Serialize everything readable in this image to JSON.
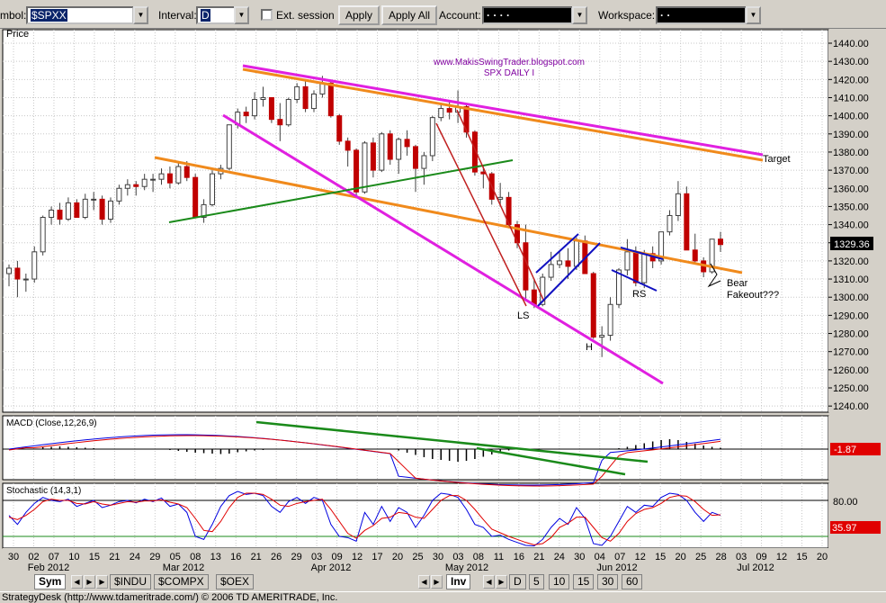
{
  "toolbar": {
    "symbol_label": "mbol:",
    "symbol_value": "$SPXX",
    "interval_label": "Interval:",
    "interval_value": "D",
    "ext_session_label": "Ext. session",
    "apply_label": "Apply",
    "apply_all_label": "Apply All",
    "account_label": "Account:",
    "account_value": "·    ·    ·    ·",
    "workspace_label": "Workspace:",
    "workspace_value": "·    ·"
  },
  "price_panel": {
    "label": "Price",
    "watermark_line1": "www.MakisSwingTrader.blogspot.com",
    "watermark_line2": "SPX DAILY I",
    "last_price": "1329.36",
    "annotations": {
      "target": "Target",
      "bear": "Bear",
      "fakeout": "Fakeout???",
      "ls": "LS",
      "h": "H",
      "rs": "RS"
    },
    "line_colors": {
      "magenta": "#e020e0",
      "orange": "#f08a1c",
      "green": "#1a8a1a",
      "red": "#c02020",
      "blue": "#1010c0"
    }
  },
  "macd_panel": {
    "label": "MACD (Close,12,26,9)",
    "last_value": "-1.87"
  },
  "stoch_panel": {
    "label": "Stochastic (14,3,1)",
    "level_80": "80.00",
    "last_value": "35.97"
  },
  "chart_data": {
    "type": "candlestick",
    "ylim": [
      1240,
      1445
    ],
    "y_ticks": [
      1440,
      1430,
      1420,
      1410,
      1400,
      1390,
      1380,
      1370,
      1360,
      1350,
      1340,
      1330,
      1320,
      1310,
      1300,
      1290,
      1280,
      1270,
      1260,
      1250,
      1240
    ],
    "date_ticks": [
      "30",
      "02",
      "07",
      "10",
      "15",
      "21",
      "24",
      "29",
      "05",
      "08",
      "13",
      "16",
      "21",
      "26",
      "29",
      "03",
      "09",
      "12",
      "17",
      "20",
      "25",
      "30",
      "03",
      "08",
      "11",
      "16",
      "21",
      "24",
      "30",
      "04",
      "07",
      "12",
      "15",
      "20",
      "25",
      "28",
      "03",
      "09",
      "12",
      "15",
      "20"
    ],
    "month_labels": [
      "Feb 2012",
      "Mar 2012",
      "Apr 2012",
      "May 2012",
      "Jun 2012",
      "Jul 2012"
    ],
    "ohlc": [
      [
        1313,
        1318,
        1306,
        1316
      ],
      [
        1316,
        1320,
        1300,
        1310
      ],
      [
        1310,
        1313,
        1303,
        1310
      ],
      [
        1310,
        1328,
        1308,
        1325
      ],
      [
        1325,
        1345,
        1323,
        1344
      ],
      [
        1344,
        1350,
        1340,
        1348
      ],
      [
        1348,
        1352,
        1340,
        1343
      ],
      [
        1343,
        1355,
        1342,
        1352
      ],
      [
        1352,
        1354,
        1344,
        1344
      ],
      [
        1344,
        1357,
        1343,
        1354
      ],
      [
        1354,
        1358,
        1348,
        1354
      ],
      [
        1354,
        1356,
        1340,
        1343
      ],
      [
        1343,
        1355,
        1341,
        1353
      ],
      [
        1353,
        1362,
        1351,
        1360
      ],
      [
        1360,
        1365,
        1356,
        1362
      ],
      [
        1362,
        1364,
        1356,
        1361
      ],
      [
        1361,
        1368,
        1359,
        1365
      ],
      [
        1365,
        1368,
        1358,
        1365
      ],
      [
        1365,
        1371,
        1362,
        1368
      ],
      [
        1368,
        1372,
        1360,
        1363
      ],
      [
        1363,
        1374,
        1362,
        1372
      ],
      [
        1372,
        1375,
        1364,
        1366
      ],
      [
        1366,
        1368,
        1344,
        1344
      ],
      [
        1344,
        1354,
        1341,
        1351
      ],
      [
        1351,
        1370,
        1350,
        1368
      ],
      [
        1368,
        1373,
        1365,
        1371
      ],
      [
        1371,
        1395,
        1370,
        1395
      ],
      [
        1395,
        1404,
        1393,
        1402
      ],
      [
        1402,
        1405,
        1396,
        1400
      ],
      [
        1400,
        1413,
        1398,
        1409
      ],
      [
        1409,
        1416,
        1405,
        1410
      ],
      [
        1410,
        1408,
        1396,
        1398
      ],
      [
        1398,
        1407,
        1386,
        1395
      ],
      [
        1395,
        1410,
        1394,
        1409
      ],
      [
        1409,
        1418,
        1407,
        1416
      ],
      [
        1416,
        1419,
        1402,
        1404
      ],
      [
        1404,
        1414,
        1402,
        1412
      ],
      [
        1412,
        1422,
        1410,
        1418
      ],
      [
        1418,
        1420,
        1399,
        1400
      ],
      [
        1400,
        1401,
        1384,
        1386
      ],
      [
        1386,
        1388,
        1372,
        1381
      ],
      [
        1381,
        1382,
        1356,
        1358
      ],
      [
        1358,
        1386,
        1357,
        1385
      ],
      [
        1385,
        1388,
        1366,
        1370
      ],
      [
        1370,
        1391,
        1369,
        1390
      ],
      [
        1390,
        1392,
        1373,
        1376
      ],
      [
        1376,
        1388,
        1368,
        1387
      ],
      [
        1387,
        1392,
        1378,
        1383
      ],
      [
        1383,
        1384,
        1358,
        1371
      ],
      [
        1371,
        1380,
        1362,
        1378
      ],
      [
        1378,
        1400,
        1375,
        1399
      ],
      [
        1399,
        1406,
        1397,
        1404
      ],
      [
        1404,
        1408,
        1398,
        1402
      ],
      [
        1402,
        1414,
        1396,
        1405
      ],
      [
        1405,
        1407,
        1388,
        1391
      ],
      [
        1391,
        1392,
        1367,
        1369
      ],
      [
        1369,
        1372,
        1360,
        1368
      ],
      [
        1368,
        1369,
        1351,
        1354
      ],
      [
        1354,
        1363,
        1350,
        1355
      ],
      [
        1355,
        1358,
        1338,
        1340
      ],
      [
        1340,
        1342,
        1327,
        1330
      ],
      [
        1330,
        1340,
        1298,
        1304
      ],
      [
        1304,
        1310,
        1294,
        1296
      ],
      [
        1296,
        1313,
        1295,
        1311
      ],
      [
        1311,
        1325,
        1309,
        1318
      ],
      [
        1318,
        1325,
        1316,
        1320
      ],
      [
        1320,
        1327,
        1310,
        1317
      ],
      [
        1317,
        1333,
        1315,
        1331
      ],
      [
        1331,
        1334,
        1313,
        1313
      ],
      [
        1313,
        1314,
        1277,
        1278
      ],
      [
        1278,
        1284,
        1267,
        1279
      ],
      [
        1279,
        1300,
        1276,
        1296
      ],
      [
        1296,
        1316,
        1294,
        1315
      ],
      [
        1315,
        1332,
        1312,
        1325
      ],
      [
        1325,
        1328,
        1306,
        1308
      ],
      [
        1308,
        1326,
        1305,
        1324
      ],
      [
        1324,
        1328,
        1316,
        1320
      ],
      [
        1320,
        1336,
        1318,
        1336
      ],
      [
        1336,
        1348,
        1334,
        1345
      ],
      [
        1345,
        1364,
        1342,
        1357
      ],
      [
        1357,
        1361,
        1326,
        1326
      ],
      [
        1326,
        1335,
        1319,
        1320
      ],
      [
        1320,
        1322,
        1311,
        1314
      ],
      [
        1314,
        1332,
        1313,
        1332
      ],
      [
        1332,
        1336,
        1325,
        1329
      ]
    ],
    "macd_hist": [
      0,
      0,
      0,
      0,
      0.4,
      0.5,
      0.6,
      0.5,
      0.4,
      0.3,
      0.2,
      0.1,
      0,
      -0.1,
      0,
      0,
      0,
      0,
      0,
      -0.2,
      -0.4,
      -0.6,
      -0.8,
      -0.9,
      -1,
      -1.1,
      -1,
      -0.7,
      -0.5,
      -0.3,
      -0.2,
      -0.1,
      0,
      0,
      0,
      0,
      0,
      0,
      0,
      0,
      0,
      0,
      0,
      0,
      0,
      0,
      -0.3,
      -0.8,
      -1.3,
      -1.8,
      -2.2,
      -2.4,
      -2.6,
      -2.8,
      -2.6,
      -2.2,
      -1.7,
      -1.2,
      -0.7,
      -0.3,
      0,
      0,
      0,
      0,
      0,
      0,
      0,
      0,
      0,
      0,
      0,
      0,
      0.2,
      0.5,
      0.9,
      1.3,
      1.7,
      2.0,
      2.2,
      2.0,
      1.6,
      1.2,
      0.8,
      0.5,
      0.3
    ],
    "stoch_k": [
      55,
      40,
      60,
      75,
      85,
      80,
      78,
      82,
      70,
      75,
      80,
      68,
      72,
      78,
      80,
      76,
      82,
      78,
      84,
      70,
      74,
      60,
      20,
      15,
      40,
      70,
      88,
      95,
      90,
      92,
      88,
      70,
      60,
      78,
      85,
      75,
      85,
      80,
      40,
      20,
      18,
      12,
      60,
      40,
      70,
      45,
      68,
      60,
      35,
      55,
      80,
      92,
      90,
      85,
      65,
      40,
      35,
      20,
      22,
      15,
      10,
      5,
      4,
      15,
      35,
      50,
      40,
      68,
      50,
      8,
      5,
      20,
      45,
      70,
      60,
      72,
      70,
      85,
      92,
      90,
      80,
      60,
      45,
      60,
      55
    ],
    "stoch_d": [
      52,
      48,
      55,
      65,
      78,
      82,
      80,
      80,
      75,
      74,
      78,
      74,
      72,
      75,
      78,
      77,
      79,
      79,
      81,
      77,
      74,
      68,
      50,
      30,
      28,
      45,
      68,
      85,
      92,
      92,
      90,
      82,
      72,
      70,
      75,
      78,
      80,
      82,
      65,
      45,
      25,
      17,
      30,
      38,
      50,
      52,
      60,
      58,
      52,
      50,
      65,
      80,
      88,
      88,
      80,
      65,
      48,
      32,
      26,
      20,
      15,
      10,
      6,
      8,
      18,
      35,
      42,
      52,
      52,
      35,
      18,
      12,
      25,
      45,
      58,
      65,
      68,
      75,
      85,
      88,
      87,
      78,
      65,
      55,
      56
    ]
  },
  "bottom_tabs": {
    "sym": "Sym",
    "indu": "$INDU",
    "compx": "$COMPX",
    "oex": "$OEX",
    "inv": "Inv",
    "d": "D",
    "five": "5",
    "ten": "10",
    "fifteen": "15",
    "thirty": "30",
    "sixty": "60"
  },
  "status": {
    "text": "StrategyDesk (http://www.tdameritrade.com/) © 2006 TD AMERITRADE, Inc."
  }
}
